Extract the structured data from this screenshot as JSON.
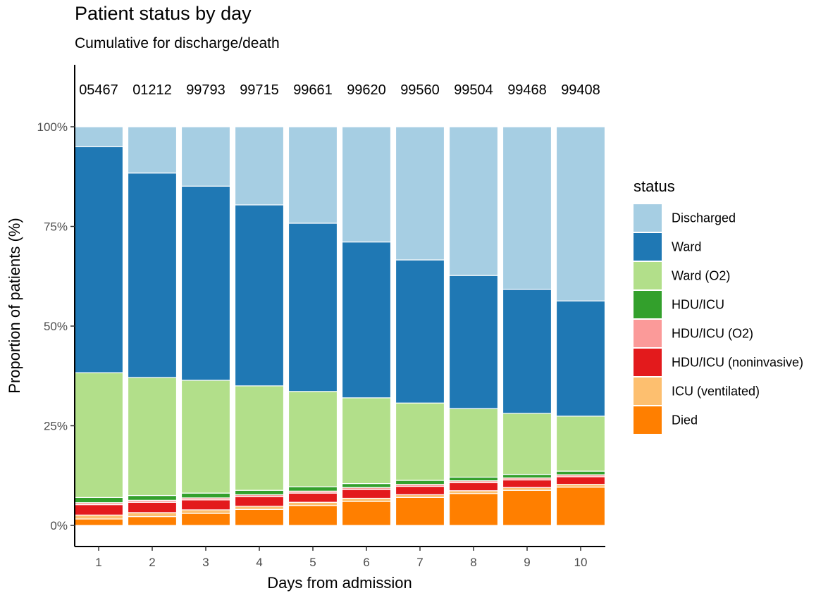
{
  "chart_data": {
    "type": "bar",
    "stacked": true,
    "title": "Patient status by day",
    "subtitle": "Cumulative for discharge/death",
    "xlabel": "Days from admission",
    "ylabel": "Proportion of patients (%)",
    "ylim": [
      0,
      100
    ],
    "yticks": [
      "0%",
      "25%",
      "50%",
      "75%",
      "100%"
    ],
    "yticks_values": [
      0,
      25,
      50,
      75,
      100
    ],
    "categories": [
      "1",
      "2",
      "3",
      "4",
      "5",
      "6",
      "7",
      "8",
      "9",
      "10"
    ],
    "count_labels": [
      "05467",
      "01212",
      "99793",
      "99715",
      "99661",
      "99620",
      "99560",
      "99504",
      "99468",
      "99408"
    ],
    "legend_title": "status",
    "legend_position": "right",
    "grid": false,
    "series": [
      {
        "name": "Died",
        "color": "#ff7f00",
        "values": [
          1.6,
          2.2,
          3.0,
          4.0,
          5.0,
          6.0,
          7.0,
          8.0,
          8.8,
          9.6
        ]
      },
      {
        "name": "ICU (ventilated)",
        "color": "#fdbf6f",
        "values": [
          1.0,
          1.0,
          0.9,
          0.8,
          0.8,
          0.8,
          0.7,
          0.7,
          0.7,
          0.7
        ]
      },
      {
        "name": "HDU/ICU (noninvasive)",
        "color": "#e31a1c",
        "values": [
          2.6,
          2.6,
          2.5,
          2.4,
          2.3,
          2.2,
          2.1,
          2.0,
          1.9,
          1.9
        ]
      },
      {
        "name": "HDU/ICU (O2)",
        "color": "#fb9a99",
        "values": [
          0.5,
          0.5,
          0.5,
          0.5,
          0.5,
          0.5,
          0.5,
          0.5,
          0.5,
          0.5
        ]
      },
      {
        "name": "HDU/ICU",
        "color": "#33a02c",
        "values": [
          1.3,
          1.2,
          1.2,
          1.1,
          1.1,
          1.0,
          1.0,
          0.9,
          0.9,
          0.9
        ]
      },
      {
        "name": "Ward (O2)",
        "color": "#b2df8a",
        "values": [
          31.3,
          29.6,
          28.3,
          26.2,
          23.9,
          21.5,
          19.4,
          17.2,
          15.3,
          13.8
        ]
      },
      {
        "name": "Ward",
        "color": "#1f78b4",
        "values": [
          56.7,
          51.3,
          48.7,
          45.4,
          42.2,
          39.1,
          35.9,
          33.4,
          31.1,
          28.9
        ]
      },
      {
        "name": "Discharged",
        "color": "#a6cee3",
        "values": [
          5.0,
          11.6,
          14.9,
          19.6,
          24.2,
          28.9,
          33.4,
          37.3,
          40.8,
          43.7
        ]
      }
    ]
  }
}
